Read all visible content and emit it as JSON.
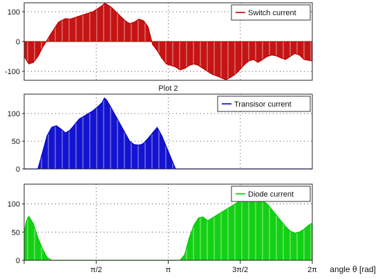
{
  "chart_data": [
    {
      "type": "area",
      "title": "",
      "series": [
        {
          "name": "Switch current",
          "color": "#c00000",
          "x": [
            0,
            0.1,
            0.2,
            0.3,
            0.4,
            0.5,
            0.6,
            0.75,
            0.9,
            1.0,
            1.1,
            1.2,
            1.3,
            1.4,
            1.5,
            1.6,
            1.7,
            1.75,
            1.8,
            1.9,
            2.0,
            2.1,
            2.2,
            2.3,
            2.4,
            2.5,
            2.6,
            2.7,
            2.8,
            2.9,
            3.0,
            3.1,
            3.2,
            3.3,
            3.4,
            3.5,
            3.6,
            3.7,
            3.8,
            3.9,
            4.0,
            4.1,
            4.2,
            4.3,
            4.4,
            4.5,
            4.6,
            4.7,
            4.8,
            4.9,
            5.0,
            5.1,
            5.2,
            5.3,
            5.4,
            5.5,
            5.6,
            5.7,
            5.8,
            5.9,
            6.0,
            6.1,
            6.2832
          ],
          "y": [
            -50,
            -75,
            -70,
            -50,
            -20,
            5,
            30,
            65,
            77,
            75,
            80,
            85,
            90,
            95,
            100,
            110,
            120,
            128,
            125,
            115,
            100,
            85,
            70,
            60,
            65,
            75,
            70,
            50,
            -10,
            -30,
            -55,
            -75,
            -80,
            -85,
            -95,
            -90,
            -80,
            -75,
            -80,
            -90,
            -100,
            -110,
            -115,
            -122,
            -128,
            -120,
            -110,
            -95,
            -78,
            -65,
            -60,
            -70,
            -60,
            -50,
            -45,
            -48,
            -55,
            -60,
            -50,
            -40,
            -45,
            -60,
            -65
          ]
        }
      ],
      "xlim": [
        0,
        6.2832
      ],
      "ylim": [
        -130,
        130
      ],
      "yticks": [
        -100,
        0,
        100
      ],
      "grid": true,
      "legend_position": "top-right"
    },
    {
      "type": "area",
      "title": "Plot 2",
      "series": [
        {
          "name": "Transisor current",
          "color": "#0000cc",
          "x": [
            0,
            0.3,
            0.4,
            0.5,
            0.6,
            0.7,
            0.8,
            0.9,
            1.0,
            1.1,
            1.2,
            1.3,
            1.4,
            1.5,
            1.6,
            1.7,
            1.75,
            1.8,
            1.9,
            2.0,
            2.1,
            2.2,
            2.3,
            2.4,
            2.5,
            2.55,
            2.6,
            2.7,
            2.8,
            2.9,
            3.0,
            3.1,
            3.2,
            3.3,
            3.4,
            3.5,
            3.55,
            3.6,
            6.2832
          ],
          "y": [
            0,
            0,
            30,
            60,
            75,
            78,
            72,
            65,
            70,
            80,
            90,
            95,
            100,
            105,
            112,
            120,
            128,
            124,
            110,
            95,
            80,
            65,
            50,
            44,
            43,
            44,
            46,
            55,
            65,
            75,
            60,
            40,
            20,
            0,
            0,
            0,
            0,
            0,
            0
          ]
        }
      ],
      "xlim": [
        0,
        6.2832
      ],
      "ylim": [
        0,
        135
      ],
      "yticks": [
        0,
        50,
        100
      ],
      "grid": true,
      "legend_position": "top-right"
    },
    {
      "type": "area",
      "title": "",
      "series": [
        {
          "name": "Diode current",
          "color": "#00cc00",
          "x": [
            0,
            0.05,
            0.1,
            0.2,
            0.3,
            0.4,
            0.5,
            0.6,
            0.8,
            1.0,
            1.5,
            2.0,
            2.5,
            3.0,
            3.4,
            3.5,
            3.6,
            3.7,
            3.8,
            3.9,
            4.0,
            4.1,
            4.2,
            4.3,
            4.4,
            4.5,
            4.6,
            4.7,
            4.8,
            4.9,
            5.0,
            5.1,
            5.2,
            5.3,
            5.4,
            5.5,
            5.6,
            5.7,
            5.8,
            5.9,
            6.0,
            6.1,
            6.2,
            6.2832
          ],
          "y": [
            50,
            70,
            78,
            65,
            40,
            20,
            5,
            0,
            0,
            0,
            0,
            0,
            0,
            0,
            0,
            10,
            40,
            62,
            75,
            77,
            70,
            75,
            80,
            85,
            90,
            95,
            100,
            105,
            110,
            112,
            110,
            108,
            105,
            100,
            90,
            80,
            70,
            60,
            52,
            48,
            50,
            55,
            62,
            66
          ]
        }
      ],
      "xlim": [
        0,
        6.2832
      ],
      "ylim": [
        0,
        135
      ],
      "yticks": [
        0,
        50,
        100
      ],
      "grid": true,
      "legend_position": "top-right"
    }
  ],
  "x_axis": {
    "tick_labels": [
      "π/2",
      "π",
      "3π/2",
      "2π"
    ],
    "tick_values": [
      1.5708,
      3.1416,
      4.7124,
      6.2832
    ],
    "label": "angle θ [rad]"
  }
}
